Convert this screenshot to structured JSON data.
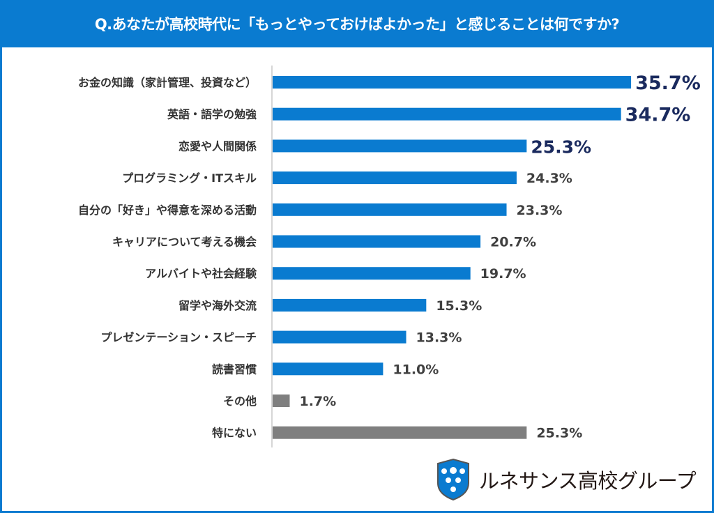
{
  "header": {
    "title": "Q.あなたが高校時代に「もっとやっておけばよかった」と感じることは何ですか?"
  },
  "logo": {
    "text": "ルネサンス高校グループ"
  },
  "colors": {
    "bar_primary": "#0a7bd0",
    "bar_other": "#7f7f7f",
    "highlight_label": "#1a2a5e",
    "label": "#404040"
  },
  "chart_data": {
    "type": "bar",
    "orientation": "horizontal",
    "title": "Q.あなたが高校時代に「もっとやっておけばよかった」と感じることは何ですか?",
    "categories": [
      "お金の知識（家計管理、投資など）",
      "英語・語学の勉強",
      "恋愛や人間関係",
      "プログラミング・ITスキル",
      "自分の「好き」や得意を深める活動",
      "キャリアについて考える機会",
      "アルバイトや社会経験",
      "留学や海外交流",
      "プレゼンテーション・スピーチ",
      "読書習慣",
      "その他",
      "特にない"
    ],
    "values": [
      35.7,
      34.7,
      25.3,
      24.3,
      23.3,
      20.7,
      19.7,
      15.3,
      13.3,
      11.0,
      1.7,
      25.3
    ],
    "labels": [
      "35.7%",
      "34.7%",
      "25.3%",
      "24.3%",
      "23.3%",
      "20.7%",
      "19.7%",
      "15.3%",
      "13.3%",
      "11.0%",
      "1.7%",
      "25.3%"
    ],
    "highlighted": [
      true,
      true,
      true,
      false,
      false,
      false,
      false,
      false,
      false,
      false,
      false,
      false
    ],
    "gray_bars": [
      false,
      false,
      false,
      false,
      false,
      false,
      false,
      false,
      false,
      false,
      true,
      true
    ],
    "unit": "%",
    "grid": false,
    "legend": "none"
  }
}
